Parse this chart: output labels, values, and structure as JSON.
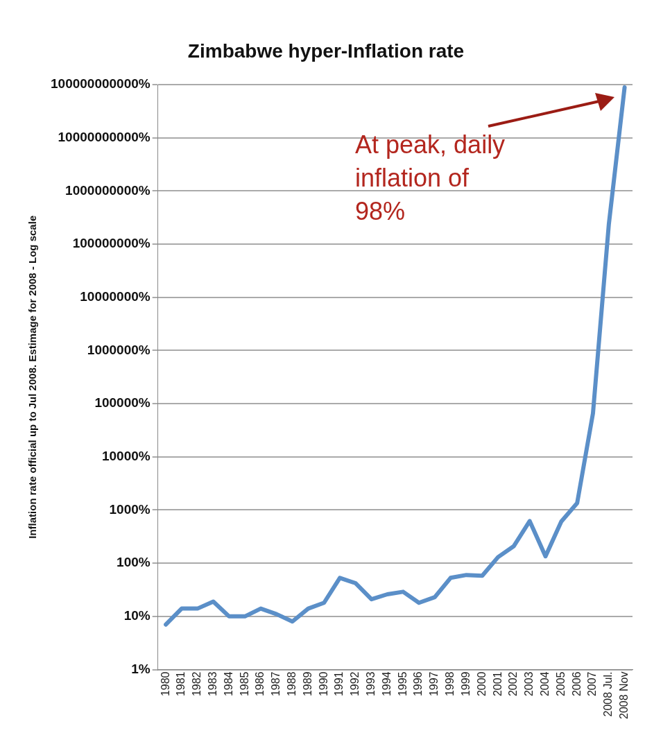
{
  "chart_data": {
    "type": "line",
    "title": "Zimbabwe hyper-Inflation rate",
    "ylabel": "Inflation rate official up to Jul 2008. Estimage for 2008 - Log scale",
    "categories": [
      "1980",
      "1981",
      "1982",
      "1983",
      "1984",
      "1985",
      "1986",
      "1987",
      "1988",
      "1989",
      "1990",
      "1991",
      "1992",
      "1993",
      "1994",
      "1995",
      "1996",
      "1997",
      "1998",
      "1999",
      "2000",
      "2001",
      "2002",
      "2003",
      "2004",
      "2005",
      "2006",
      "2007",
      "2008 Jul.",
      "2008 Nov"
    ],
    "series": [
      {
        "color": "#5b8fc8",
        "values": [
          7,
          14,
          14,
          19,
          10,
          10,
          14,
          11,
          8,
          14,
          18,
          53,
          42,
          21,
          26,
          29,
          18,
          23,
          53,
          60,
          58,
          130,
          210,
          620,
          135,
          610,
          1350,
          66000,
          231000000,
          89000000000
        ]
      }
    ],
    "log": true,
    "ylim": [
      1,
      100000000000
    ],
    "yticks": [
      {
        "value": 1,
        "label": "1%"
      },
      {
        "value": 10,
        "label": "10%"
      },
      {
        "value": 100,
        "label": "100%"
      },
      {
        "value": 1000,
        "label": "1000%"
      },
      {
        "value": 10000,
        "label": "10000%"
      },
      {
        "value": 100000,
        "label": "100000%"
      },
      {
        "value": 1000000,
        "label": "1000000%"
      },
      {
        "value": 10000000,
        "label": "10000000%"
      },
      {
        "value": 100000000,
        "label": "100000000%"
      },
      {
        "value": 1000000000,
        "label": "1000000000%"
      },
      {
        "value": 10000000000,
        "label": "10000000000%"
      },
      {
        "value": 100000000000,
        "label": "100000000000%"
      }
    ],
    "grid": "y",
    "legend": false,
    "marker": "none",
    "line_style": "solid",
    "annotations": [
      "At peak, daily inflation of 98%"
    ]
  }
}
